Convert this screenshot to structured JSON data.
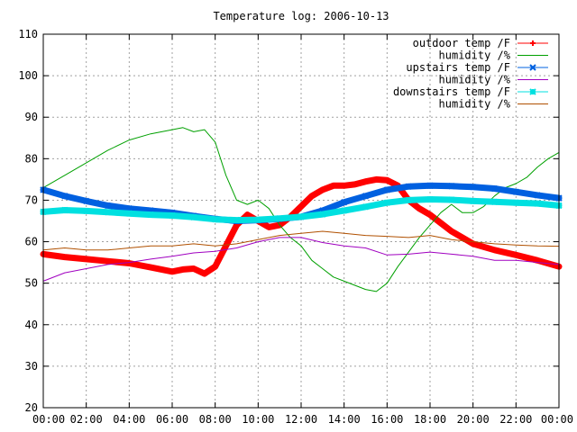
{
  "chart_data": {
    "type": "line",
    "title": "Temperature log: 2006-10-13",
    "xlabel": "",
    "ylabel": "",
    "xlim": [
      0,
      24
    ],
    "ylim": [
      20,
      110
    ],
    "x_tick_labels": [
      "00:00",
      "02:00",
      "04:00",
      "06:00",
      "08:00",
      "10:00",
      "12:00",
      "14:00",
      "16:00",
      "18:00",
      "20:00",
      "22:00",
      "00:00"
    ],
    "y_tick_labels": [
      "20",
      "30",
      "40",
      "50",
      "60",
      "70",
      "80",
      "90",
      "100",
      "110"
    ],
    "grid": true,
    "legend_position": "top-right",
    "series": [
      {
        "name": "outdoor temp /F",
        "color": "#ff0000",
        "marker": "plus",
        "x": [
          0,
          1,
          2,
          3,
          4,
          5,
          6,
          6.5,
          7,
          7.5,
          8,
          8.5,
          9,
          9.5,
          10,
          10.5,
          11,
          11.5,
          12,
          12.5,
          13,
          13.5,
          14,
          14.5,
          15,
          15.5,
          16,
          16.5,
          17,
          17.5,
          18,
          18.5,
          19,
          19.5,
          20,
          21,
          22,
          23,
          24
        ],
        "y": [
          57,
          56.3,
          55.8,
          55.3,
          54.8,
          53.8,
          52.8,
          53.3,
          53.5,
          52.3,
          54,
          59,
          64,
          66.5,
          65,
          63.5,
          64,
          66,
          68.5,
          71,
          72.5,
          73.5,
          73.5,
          73.8,
          74.5,
          75,
          74.8,
          73.5,
          70,
          68,
          66.5,
          64.5,
          62.5,
          61,
          59.5,
          58,
          56.8,
          55.5,
          54
        ]
      },
      {
        "name": "humidity /%",
        "color": "#00a000",
        "marker": "none",
        "x": [
          0,
          1,
          2,
          3,
          4,
          5,
          6,
          6.5,
          7,
          7.5,
          8,
          8.5,
          9,
          9.5,
          10,
          10.5,
          11,
          11.5,
          12,
          12.5,
          13,
          13.5,
          14,
          14.5,
          15,
          15.5,
          16,
          16.5,
          17,
          17.5,
          18,
          18.5,
          19,
          19.5,
          20,
          20.5,
          21,
          21.5,
          22,
          22.5,
          23,
          23.5,
          24
        ],
        "y": [
          73,
          76,
          79,
          82,
          84.5,
          86,
          87,
          87.5,
          86.5,
          87,
          84,
          76,
          70,
          69,
          70,
          68,
          64,
          61,
          59,
          55.5,
          53.5,
          51.5,
          50.5,
          49.5,
          48.5,
          48,
          50,
          54,
          57.5,
          61,
          64,
          67,
          69,
          67,
          67,
          68.5,
          71,
          73,
          74,
          75.5,
          78,
          80,
          81.5
        ]
      },
      {
        "name": "upstairs temp /F",
        "color": "#0060e0",
        "marker": "cross",
        "x": [
          0,
          1,
          2,
          3,
          4,
          5,
          6,
          7,
          8,
          9,
          10,
          11,
          12,
          13,
          14,
          15,
          16,
          17,
          18,
          19,
          20,
          21,
          22,
          23,
          24
        ],
        "y": [
          72.5,
          71,
          69.8,
          68.7,
          68,
          67.5,
          67,
          66.2,
          65.5,
          65,
          65.2,
          65.5,
          66,
          67.5,
          69.5,
          71,
          72.5,
          73.3,
          73.5,
          73.4,
          73.2,
          72.8,
          72,
          71.2,
          70.5
        ]
      },
      {
        "name": "humidity /%",
        "color": "#a000c0",
        "marker": "none",
        "x": [
          0,
          1,
          2,
          3,
          4,
          5,
          6,
          7,
          8,
          9,
          10,
          11,
          12,
          13,
          14,
          15,
          16,
          17,
          18,
          19,
          20,
          21,
          22,
          23,
          24
        ],
        "y": [
          50.5,
          52.5,
          53.5,
          54.5,
          55,
          55.8,
          56.5,
          57.3,
          57.7,
          58.5,
          60,
          61,
          61,
          59.8,
          59,
          58.5,
          56.8,
          57,
          57.5,
          57,
          56.5,
          55.5,
          55.5,
          55,
          54.5
        ]
      },
      {
        "name": "downstairs temp /F",
        "color": "#00e0e0",
        "marker": "star",
        "x": [
          0,
          1,
          2,
          3,
          4,
          5,
          6,
          7,
          8,
          9,
          10,
          11,
          12,
          13,
          14,
          15,
          16,
          17,
          18,
          19,
          20,
          21,
          22,
          23,
          24
        ],
        "y": [
          67.2,
          67.6,
          67.4,
          67.1,
          66.8,
          66.5,
          66.3,
          65.9,
          65.4,
          65.2,
          65.3,
          65.6,
          66,
          66.6,
          67.5,
          68.4,
          69.4,
          70,
          70.2,
          70.1,
          69.8,
          69.6,
          69.4,
          69.2,
          68.7
        ]
      },
      {
        "name": "humidity /%",
        "color": "#b05000",
        "marker": "none",
        "x": [
          0,
          1,
          2,
          3,
          4,
          5,
          6,
          7,
          8,
          9,
          10,
          11,
          12,
          13,
          14,
          15,
          16,
          17,
          18,
          19,
          20,
          21,
          22,
          23,
          24
        ],
        "y": [
          58,
          58.5,
          58,
          58,
          58.5,
          59,
          59,
          59.5,
          59,
          59.5,
          60.5,
          61.5,
          62,
          62.5,
          62,
          61.5,
          61.3,
          61,
          61.5,
          60.5,
          60,
          59.5,
          59.2,
          59,
          58.9
        ]
      }
    ]
  }
}
